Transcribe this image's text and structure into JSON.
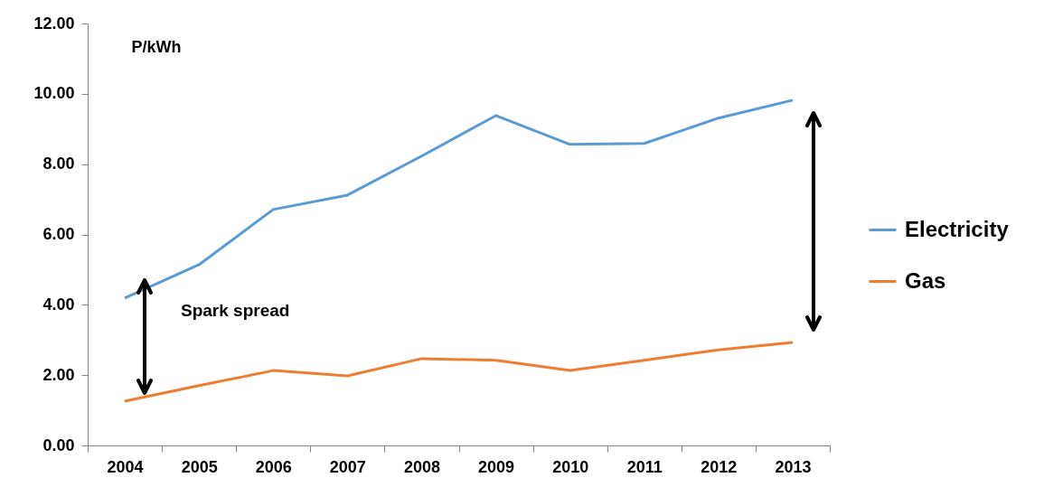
{
  "chart_data": {
    "type": "line",
    "ylabel": "P/kWh",
    "categories": [
      "2004",
      "2005",
      "2006",
      "2007",
      "2008",
      "2009",
      "2010",
      "2011",
      "2012",
      "2013"
    ],
    "series": [
      {
        "name": "Electricity",
        "color": "#5b9bd5",
        "values": [
          4.19,
          5.14,
          6.71,
          7.12,
          8.23,
          9.38,
          8.56,
          8.59,
          9.31,
          9.82
        ]
      },
      {
        "name": "Gas",
        "color": "#ed7d31",
        "values": [
          1.26,
          1.7,
          2.13,
          1.98,
          2.47,
          2.42,
          2.13,
          2.42,
          2.72,
          2.93
        ]
      }
    ],
    "ylim": [
      0,
      12
    ],
    "yticks": [
      {
        "value": 0,
        "label": "0.00"
      },
      {
        "value": 2,
        "label": "2.00"
      },
      {
        "value": 4,
        "label": "4.00"
      },
      {
        "value": 6,
        "label": "6.00"
      },
      {
        "value": 8,
        "label": "8.00"
      },
      {
        "value": 10,
        "label": "10.00"
      },
      {
        "value": 12,
        "label": "12.00"
      }
    ],
    "annotations": [
      "Spark spread"
    ],
    "legend": "right",
    "grid": false,
    "marker": "none",
    "line_style": "solid"
  }
}
